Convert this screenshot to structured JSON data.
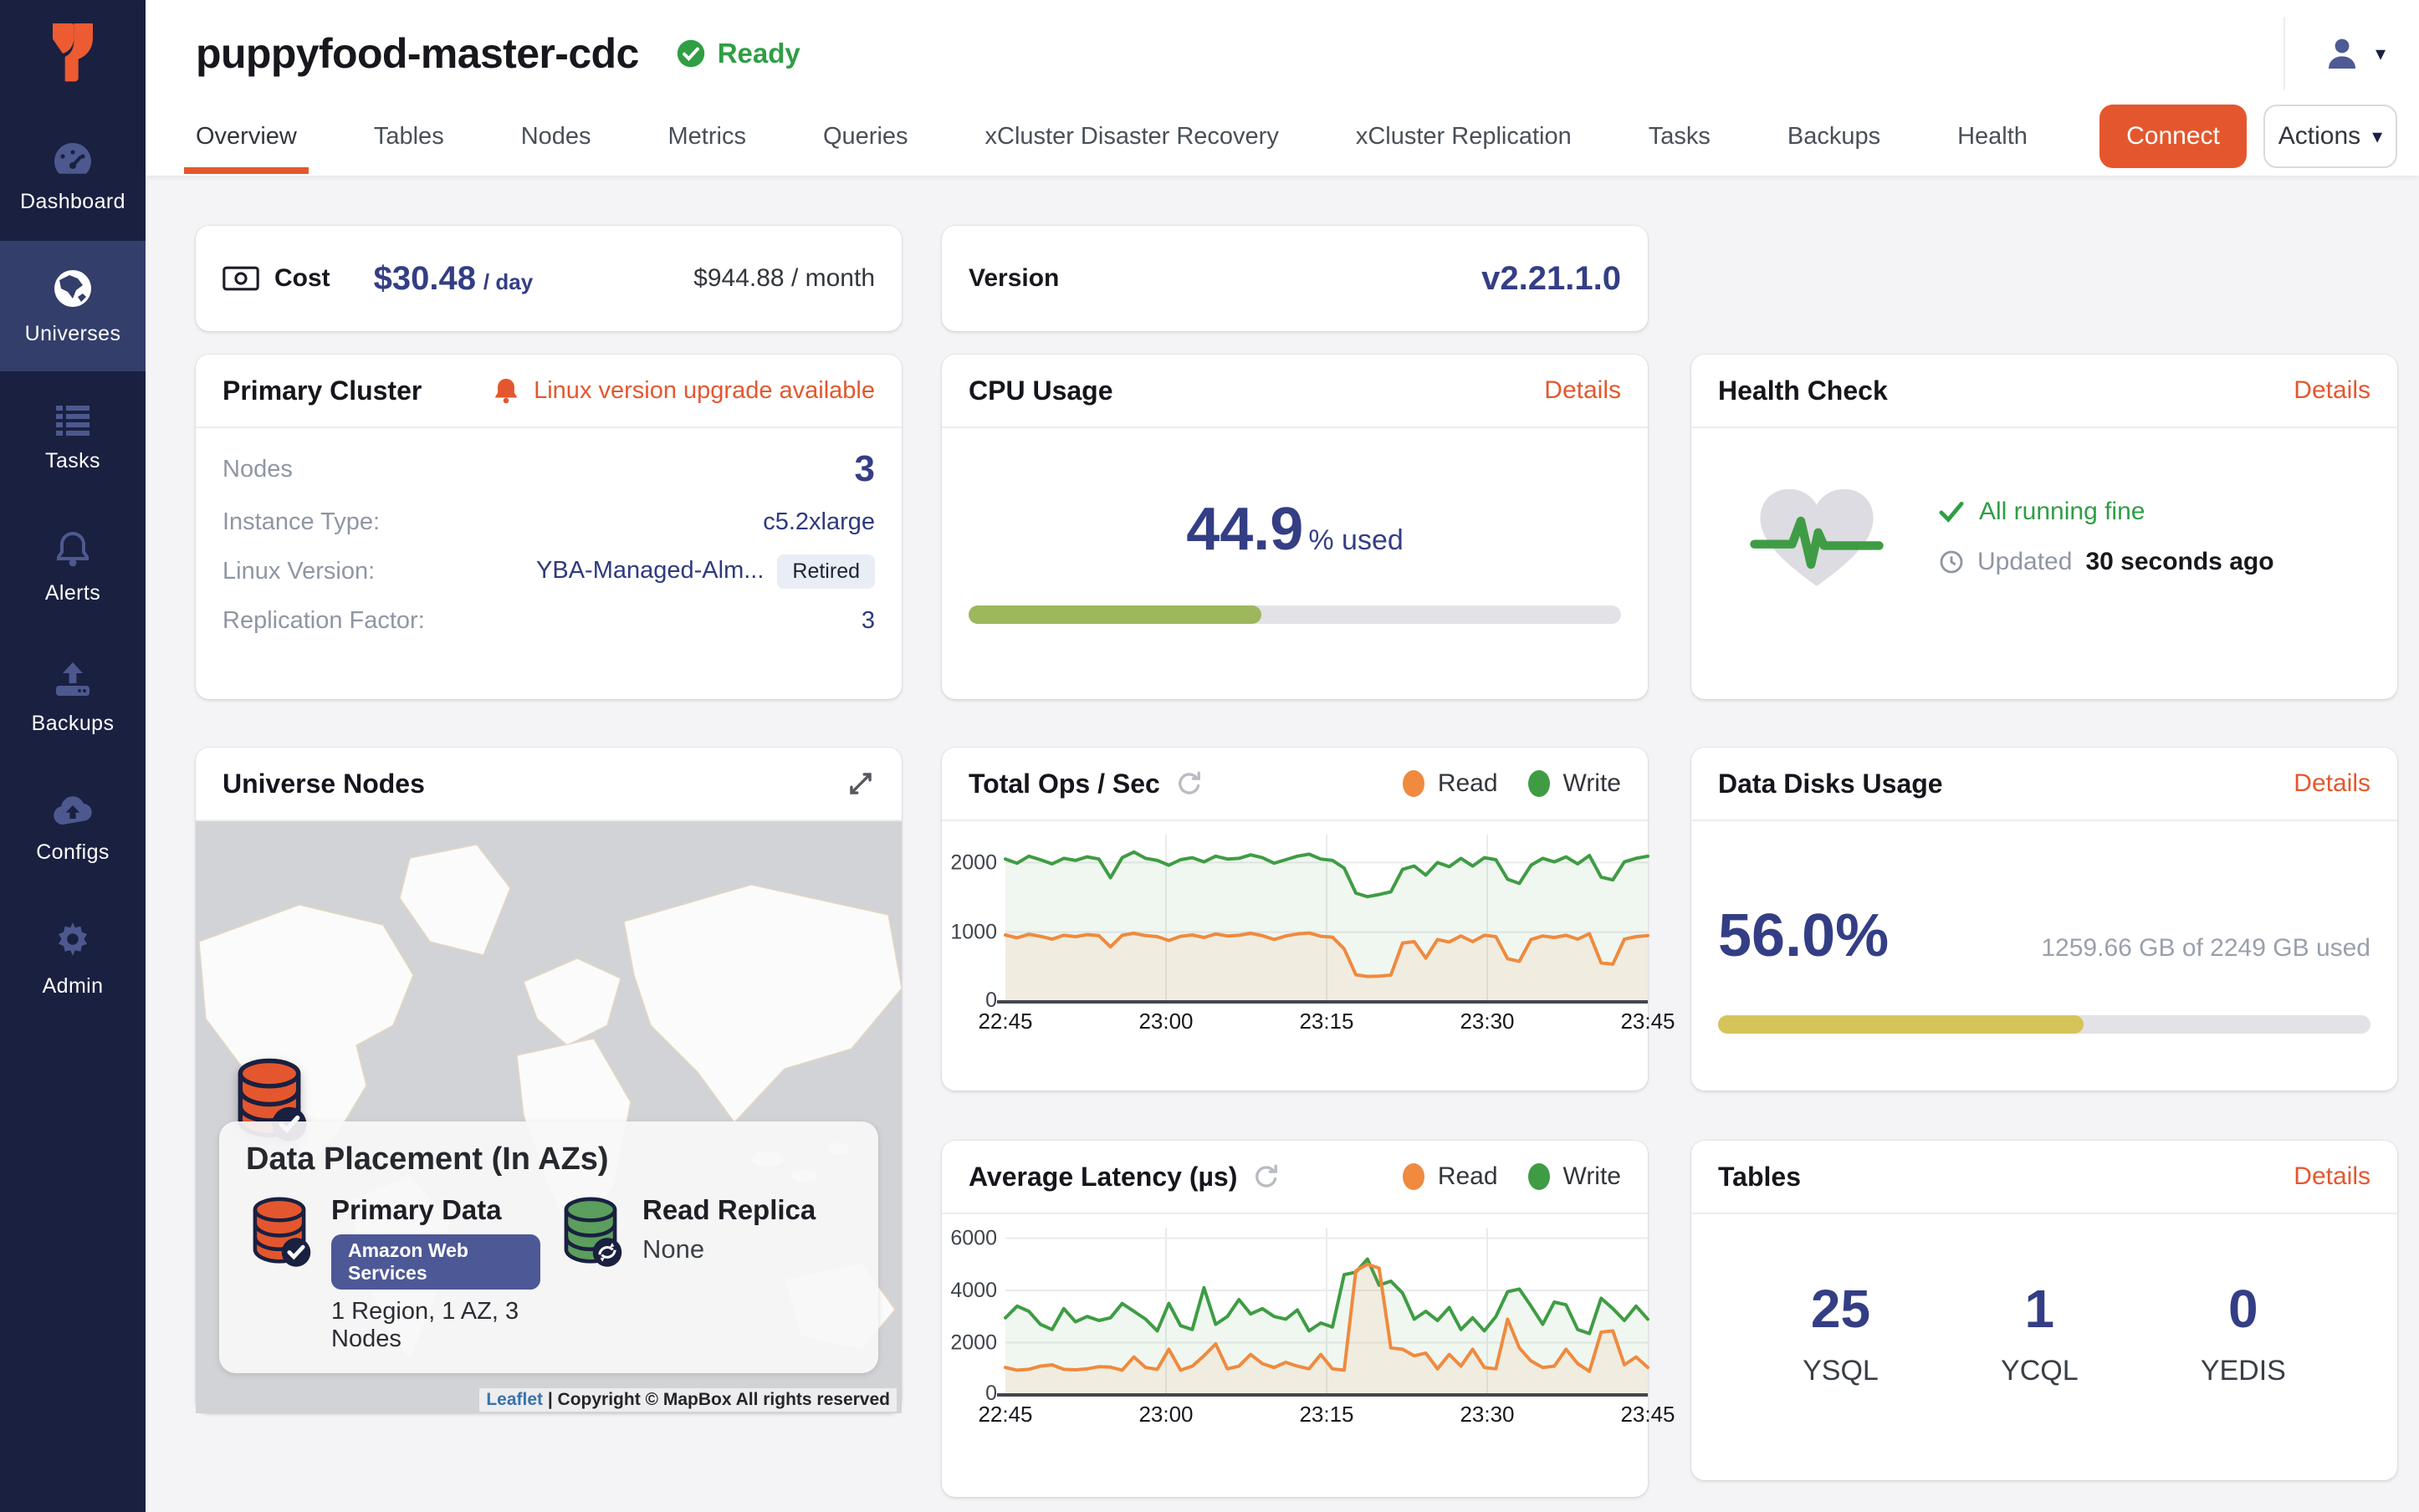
{
  "sidebar": {
    "items": [
      {
        "label": "Dashboard"
      },
      {
        "label": "Universes"
      },
      {
        "label": "Tasks"
      },
      {
        "label": "Alerts"
      },
      {
        "label": "Backups"
      },
      {
        "label": "Configs"
      },
      {
        "label": "Admin"
      }
    ]
  },
  "header": {
    "title": "puppyfood-master-cdc",
    "status": "Ready",
    "tabs": [
      "Overview",
      "Tables",
      "Nodes",
      "Metrics",
      "Queries",
      "xCluster Disaster Recovery",
      "xCluster Replication",
      "Tasks",
      "Backups",
      "Health"
    ],
    "active_tab": "Overview",
    "connect_label": "Connect",
    "actions_label": "Actions"
  },
  "cost_card": {
    "label": "Cost",
    "day_value": "$30.48",
    "day_suffix": "/ day",
    "month_value": "$944.88 / month"
  },
  "version_card": {
    "label": "Version",
    "value": "v2.21.1.0"
  },
  "primary_cluster": {
    "title": "Primary Cluster",
    "alert": "Linux version upgrade available",
    "rows": [
      {
        "label": "Nodes",
        "value": "3"
      },
      {
        "label": "Instance Type:",
        "value": "c5.2xlarge"
      },
      {
        "label": "Linux Version:",
        "value": "YBA-Managed-Alm...",
        "badge": "Retired"
      },
      {
        "label": "Replication Factor:",
        "value": "3"
      }
    ]
  },
  "cpu": {
    "title": "CPU Usage",
    "details_label": "Details",
    "value": "44.9",
    "suffix": "% used",
    "percent": 44.9,
    "bar_color": "#9cb75c"
  },
  "health": {
    "title": "Health Check",
    "details_label": "Details",
    "status": "All running fine",
    "updated_label": "Updated",
    "updated_value": "30 seconds ago"
  },
  "nodes_map": {
    "title": "Universe Nodes",
    "overlay_title": "Data Placement (In AZs)",
    "primary_label": "Primary Data",
    "primary_provider": "Amazon Web Services",
    "primary_placement": "1 Region, 1 AZ, 3 Nodes",
    "replica_label": "Read Replica",
    "replica_value": "None",
    "attribution_link": "Leaflet",
    "attribution_text": "| Copyright © MapBox All rights reserved"
  },
  "disks": {
    "title": "Data Disks Usage",
    "details_label": "Details",
    "percent_label": "56.0%",
    "usage_text": "1259.66 GB of 2249 GB used",
    "percent": 56,
    "bar_color": "#d5c45a"
  },
  "tables": {
    "title": "Tables",
    "details_label": "Details",
    "counts": [
      {
        "value": "25",
        "label": "YSQL"
      },
      {
        "value": "1",
        "label": "YCQL"
      },
      {
        "value": "0",
        "label": "YEDIS"
      }
    ]
  },
  "colors": {
    "accent_orange": "#e4572e",
    "value_indigo": "#343e85",
    "status_green": "#2f9e44",
    "sidebar_navy": "#1a2040",
    "read_orange": "#ef8a3e",
    "write_green": "#3f9c44",
    "cpu_bar_green": "#9cb75c",
    "disk_bar_yellow": "#d5c45a"
  },
  "chart_data": [
    {
      "type": "line",
      "title": "Total Ops / Sec",
      "x_ticks": [
        "22:45",
        "23:00",
        "23:15",
        "23:30",
        "23:45"
      ],
      "y_ticks": [
        0,
        1000,
        2000
      ],
      "ylim": [
        0,
        2400
      ],
      "grid": true,
      "legend_position": "top-right",
      "series": [
        {
          "name": "Read",
          "color": "#ef8a3e",
          "fill": "rgba(239,138,62,0.09)",
          "values": [
            960,
            920,
            970,
            940,
            900,
            955,
            935,
            965,
            950,
            790,
            955,
            985,
            950,
            935,
            880,
            940,
            960,
            925,
            975,
            945,
            955,
            985,
            950,
            895,
            945,
            975,
            990,
            940,
            930,
            760,
            390,
            365,
            370,
            385,
            845,
            865,
            630,
            895,
            860,
            945,
            865,
            955,
            935,
            620,
            580,
            895,
            945,
            925,
            955,
            900,
            980,
            560,
            540,
            900,
            935,
            950
          ]
        },
        {
          "name": "Write",
          "color": "#3f9c44",
          "fill": "rgba(63,156,68,0.08)",
          "values": [
            2050,
            1990,
            2090,
            2040,
            1980,
            2060,
            2030,
            2080,
            2050,
            1780,
            2070,
            2150,
            2060,
            2030,
            1960,
            2040,
            2070,
            2010,
            2090,
            2050,
            2060,
            2110,
            2070,
            1990,
            2040,
            2090,
            2120,
            2050,
            2030,
            1920,
            1560,
            1510,
            1540,
            1580,
            1900,
            1950,
            1820,
            2000,
            1940,
            2060,
            1950,
            2070,
            2040,
            1760,
            1700,
            1960,
            2060,
            2010,
            2080,
            1980,
            2100,
            1790,
            1750,
            2010,
            2060,
            2090
          ]
        }
      ]
    },
    {
      "type": "line",
      "title": "Average Latency (µs)",
      "x_ticks": [
        "22:45",
        "23:00",
        "23:15",
        "23:30",
        "23:45"
      ],
      "y_ticks": [
        0,
        2000,
        4000,
        6000
      ],
      "ylim": [
        0,
        6400
      ],
      "grid": true,
      "legend_position": "top-right",
      "series": [
        {
          "name": "Read",
          "color": "#ef8a3e",
          "fill": "rgba(239,138,62,0.09)",
          "values": [
            1050,
            950,
            980,
            1100,
            1150,
            980,
            960,
            1000,
            1080,
            1060,
            950,
            1450,
            1050,
            980,
            1750,
            950,
            1100,
            1500,
            1950,
            1000,
            1100,
            1550,
            1200,
            1050,
            1250,
            1100,
            1000,
            1550,
            1000,
            950,
            4750,
            5000,
            4850,
            1800,
            1750,
            1500,
            1600,
            1000,
            1550,
            1100,
            1750,
            1050,
            1000,
            2900,
            1800,
            1300,
            1050,
            1100,
            1750,
            1200,
            900,
            2400,
            2450,
            1150,
            1450,
            1050
          ]
        },
        {
          "name": "Write",
          "color": "#3f9c44",
          "fill": "rgba(63,156,68,0.08)",
          "values": [
            2950,
            3400,
            3200,
            2700,
            2500,
            3300,
            2800,
            3000,
            2850,
            2950,
            3500,
            3200,
            2900,
            2450,
            3500,
            2650,
            2500,
            4100,
            2700,
            3000,
            3650,
            3100,
            3300,
            3000,
            2900,
            3250,
            2450,
            2750,
            2600,
            4600,
            4700,
            5200,
            4200,
            4350,
            3900,
            2900,
            3200,
            2850,
            3350,
            2500,
            2950,
            2450,
            3000,
            3950,
            4050,
            3400,
            2700,
            3550,
            3450,
            2500,
            2350,
            3700,
            3300,
            2850,
            3400,
            2900
          ]
        }
      ]
    }
  ]
}
